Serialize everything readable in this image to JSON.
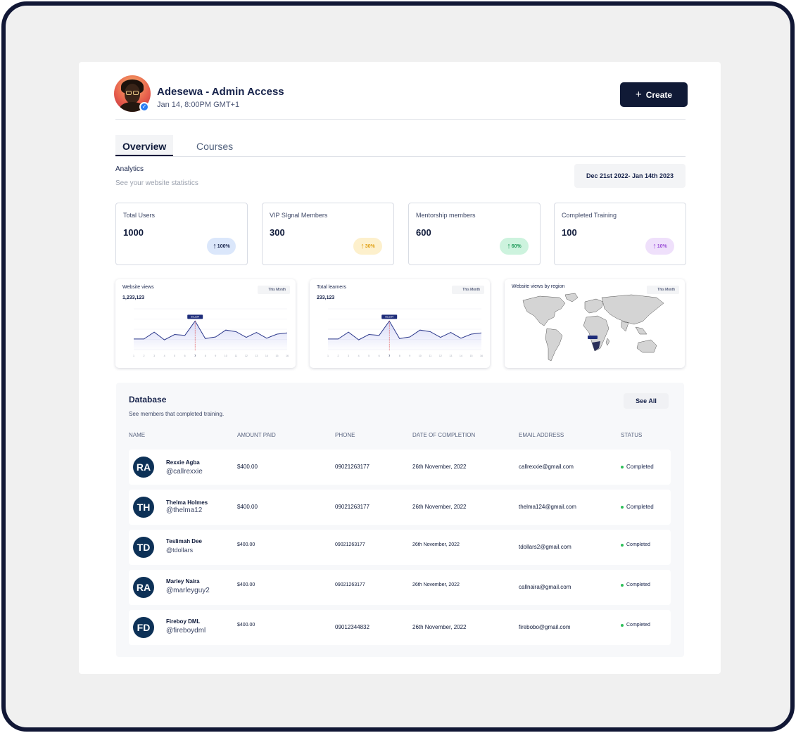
{
  "header": {
    "user_name": "Adesewa - Admin Access",
    "timestamp": "Jan 14, 8:00PM GMT+1",
    "create_label": "Create"
  },
  "tabs": [
    {
      "label": "Overview",
      "active": true
    },
    {
      "label": "Courses",
      "active": false
    }
  ],
  "analytics": {
    "title": "Analytics",
    "subtitle": "See your website statistics",
    "date_range": "Dec 21st 2022- Jan 14th 2023"
  },
  "stats": [
    {
      "label": "Total Users",
      "value": "1000",
      "change": "100%",
      "color": "#2563c9",
      "bg": "#dbe7fb"
    },
    {
      "label": "VIP SIgnal Members",
      "value": "300",
      "change": "30%",
      "color": "#e0a117",
      "bg": "#fdf0cc"
    },
    {
      "label": "Mentorship members",
      "value": "600",
      "change": "60%",
      "color": "#1f9a5a",
      "bg": "#cdf3de"
    },
    {
      "label": "Completed Training",
      "value": "100",
      "change": "10%",
      "color": "#9b4fd6",
      "bg": "#efe0fb"
    }
  ],
  "charts": {
    "views": {
      "title": "Website views",
      "value": "1,233,123",
      "filter": "This Month"
    },
    "learners": {
      "title": "Total learners",
      "value": "233,123",
      "filter": "This Month"
    },
    "region": {
      "title": "Website views by region",
      "filter": "This Month"
    }
  },
  "chart_data": [
    {
      "type": "line",
      "title": "Website views",
      "x": [
        1,
        2,
        3,
        4,
        5,
        6,
        7,
        8,
        9,
        10,
        11,
        12,
        13,
        14,
        15,
        16
      ],
      "series": [
        {
          "values": [
            26,
            26,
            43,
            24,
            37,
            35,
            70,
            27,
            31,
            48,
            44,
            30,
            42,
            28,
            38,
            41
          ]
        }
      ],
      "ylim": [
        0,
        100
      ],
      "highlight": {
        "x": 7,
        "label": "83,234"
      },
      "color": "#2e3a8c"
    },
    {
      "type": "line",
      "title": "Total learners",
      "x": [
        1,
        2,
        3,
        4,
        5,
        6,
        7,
        8,
        9,
        10,
        11,
        12,
        13,
        14,
        15,
        16
      ],
      "series": [
        {
          "values": [
            26,
            26,
            43,
            24,
            37,
            35,
            70,
            27,
            31,
            48,
            44,
            30,
            42,
            28,
            38,
            41
          ]
        }
      ],
      "ylim": [
        0,
        100
      ],
      "highlight": {
        "x": 7,
        "label": "83,234"
      },
      "color": "#2e3a8c"
    }
  ],
  "database": {
    "title": "Database",
    "subtitle": "See members that completed training.",
    "see_all": "See All",
    "columns": [
      "NAME",
      "AMOUNT PAID",
      "PHONE",
      "DATE OF COMPLETION",
      "EMAIL ADDRESS",
      "STATUS"
    ],
    "rows": [
      {
        "initials": "RA",
        "name": "Rexxie Agba",
        "handle": "@callrexxie",
        "amount": "$400.00",
        "phone": "09021263177",
        "date": "26th November, 2022",
        "email": "callrexxie@gmail.com",
        "status": "Completed"
      },
      {
        "initials": "TH",
        "name": "Thelma Holmes",
        "handle": "@thelma12",
        "amount": "$400.00",
        "phone": "09021263177",
        "date": "26th November, 2022",
        "email": "thelma124@gmail.com",
        "status": "Completed"
      },
      {
        "initials": "TD",
        "name": "Teslimah Dee",
        "handle": "@tdollars",
        "amount": "$400.00",
        "phone": "09021263177",
        "date": "26th November, 2022",
        "email": "tdollars2@gmail.com",
        "status": "Completed"
      },
      {
        "initials": "RA",
        "name": "Marley Naira",
        "handle": "@marleyguy2",
        "amount": "$400.00",
        "phone": "09021263177",
        "date": "26th November, 2022",
        "email": "callnaira@gmail.com",
        "status": "Completed"
      },
      {
        "initials": "FD",
        "name": "Fireboy DML",
        "handle": "@fireboydml",
        "amount": "$400.00",
        "phone": "09012344832",
        "date": "26th November, 2022",
        "email": "firebobo@gmail.com",
        "status": "Completed"
      }
    ]
  }
}
